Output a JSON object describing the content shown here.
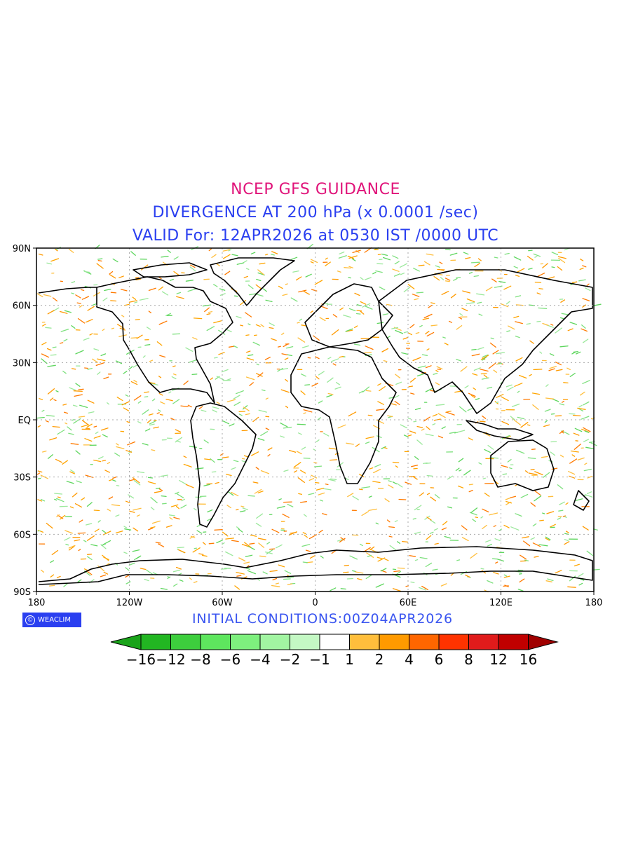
{
  "title": {
    "line1": "NCEP GFS GUIDANCE",
    "line2": "DIVERGENCE AT 200 hPa (x 0.0001 /sec)",
    "line3": "VALID For: 12APR2026 at 0530 IST /0000 UTC"
  },
  "initial_conditions": "INITIAL CONDITIONS:00Z04APR2026",
  "logo_text": "WEACLIM",
  "axes": {
    "lat_labels": [
      "90N",
      "60N",
      "30N",
      "EQ",
      "30S",
      "60S",
      "90S"
    ],
    "lon_labels": [
      "180",
      "120W",
      "60W",
      "0",
      "60E",
      "120E",
      "180"
    ]
  },
  "colorbar": {
    "labels": [
      "−16",
      "−12",
      "−8",
      "−6",
      "−4",
      "−2",
      "−1",
      "1",
      "2",
      "4",
      "6",
      "8",
      "12",
      "16"
    ],
    "colors": [
      "#1aa31a",
      "#22b622",
      "#3dce3d",
      "#5ee65e",
      "#7ef07e",
      "#a2f5a2",
      "#c4f8c4",
      "#ffffff",
      "#ffbe3c",
      "#ff9a00",
      "#ff6600",
      "#ff3300",
      "#e01b1b",
      "#c00000",
      "#a00000"
    ]
  },
  "colors": {
    "title_magenta": "#e0147a",
    "title_blue": "#2a3ff0",
    "convergence_green": "#7ee07e",
    "divergence_orange": "#ffa500"
  }
}
